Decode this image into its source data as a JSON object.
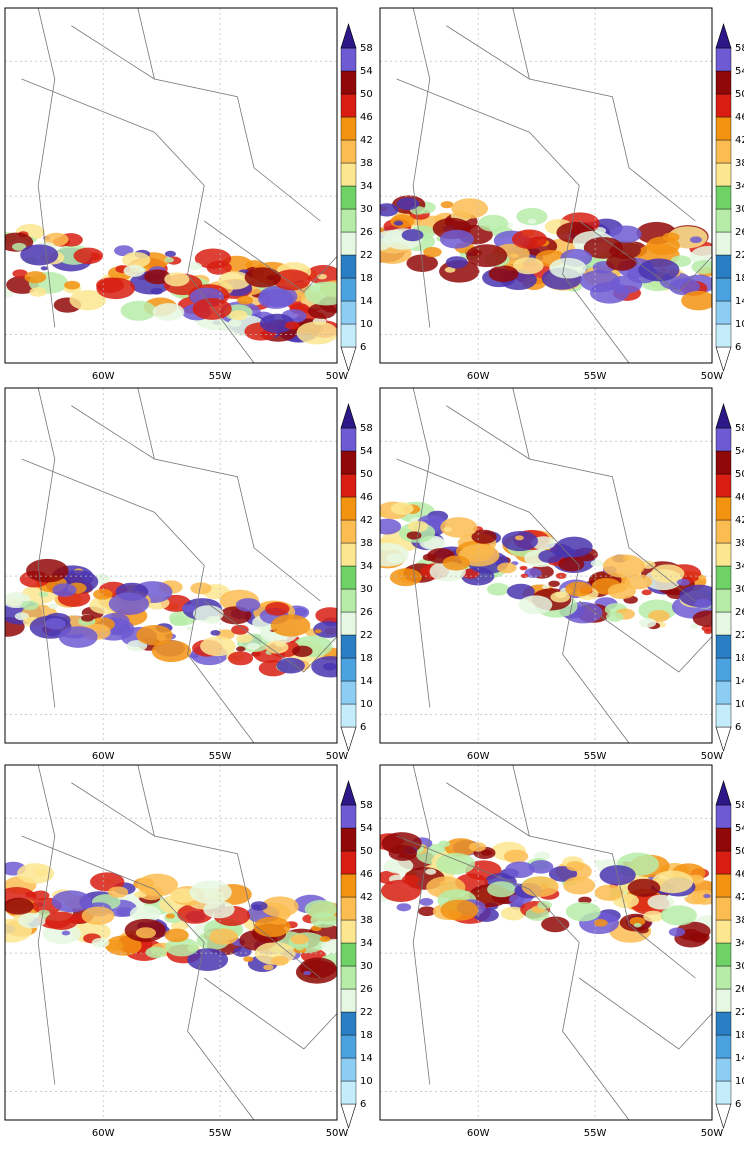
{
  "panels": [
    {
      "xticks": [
        {
          "value": -60,
          "label": "60W"
        },
        {
          "value": -55,
          "label": "55W"
        },
        {
          "value": -50,
          "label": "50W"
        }
      ]
    },
    {
      "xticks": [
        {
          "value": -60,
          "label": "60W"
        },
        {
          "value": -55,
          "label": "55W"
        },
        {
          "value": -50,
          "label": "50W"
        }
      ]
    },
    {
      "xticks": [
        {
          "value": -60,
          "label": "60W"
        },
        {
          "value": -55,
          "label": "55W"
        },
        {
          "value": -50,
          "label": "50W"
        }
      ]
    },
    {
      "xticks": [
        {
          "value": -60,
          "label": "60W"
        },
        {
          "value": -55,
          "label": "55W"
        },
        {
          "value": -50,
          "label": "50W"
        }
      ]
    },
    {
      "xticks": [
        {
          "value": -60,
          "label": "60W"
        },
        {
          "value": -55,
          "label": "55W"
        },
        {
          "value": -50,
          "label": "50W"
        }
      ]
    },
    {
      "xticks": [
        {
          "value": -60,
          "label": "60W"
        },
        {
          "value": -55,
          "label": "55W"
        },
        {
          "value": -50,
          "label": "50W"
        }
      ]
    }
  ],
  "xlim": [
    -64.2,
    -50
  ],
  "colorbar": {
    "levels": [
      6,
      10,
      14,
      18,
      22,
      26,
      30,
      34,
      38,
      42,
      46,
      50,
      54,
      58
    ],
    "colors": [
      "#ffffff",
      "#c4ecfb",
      "#8ecdf3",
      "#4aa3df",
      "#2a7fc4",
      "#e6f8e2",
      "#b6eca8",
      "#6fd267",
      "#fde690",
      "#fbbd52",
      "#f39312",
      "#d81e12",
      "#900808",
      "#6e5ad2",
      "#4a35b0",
      "#2c1888"
    ]
  }
}
